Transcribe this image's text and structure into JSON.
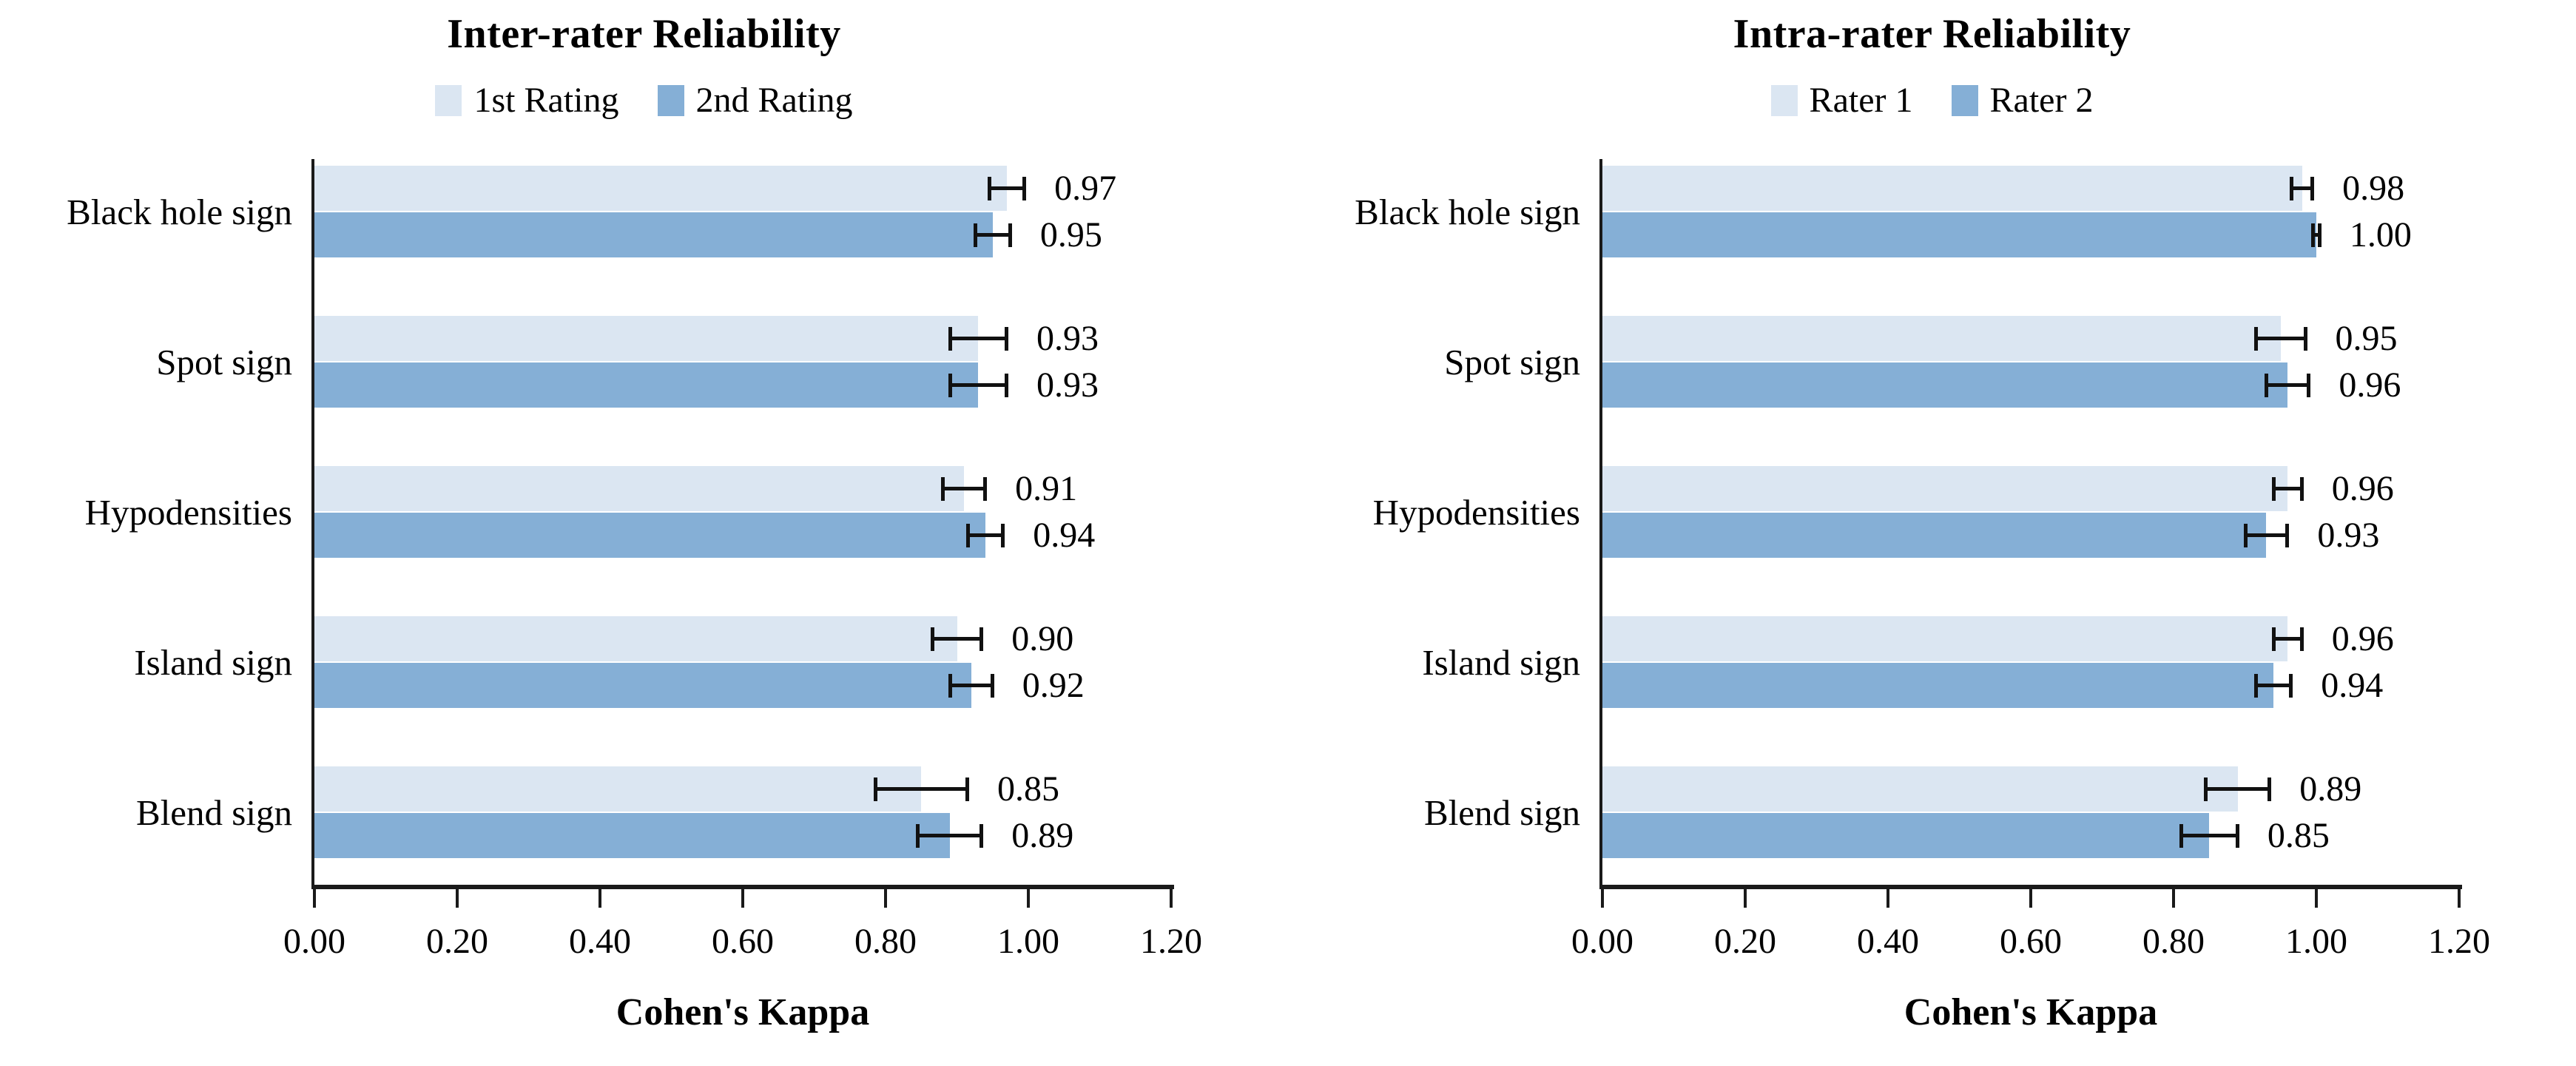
{
  "figure": {
    "background": "#ffffff",
    "text_color": "#000000",
    "axis_color": "#1a1a1a"
  },
  "chart_data": [
    {
      "type": "bar",
      "orientation": "horizontal",
      "title": "Inter-rater Reliability",
      "xlabel": "Cohen's Kappa",
      "xlim": [
        0,
        1.2
      ],
      "xtick_labels": [
        "0.00",
        "0.20",
        "0.40",
        "0.60",
        "0.80",
        "1.00",
        "1.20"
      ],
      "grid": false,
      "legend_position": "top",
      "categories": [
        "Black hole sign",
        "Spot sign",
        "Hypodensities",
        "Island sign",
        "Blend sign"
      ],
      "series": [
        {
          "name": "1st Rating",
          "color": "#dbe6f2",
          "values": [
            0.97,
            0.93,
            0.91,
            0.9,
            0.85
          ],
          "errors": [
            0.025,
            0.04,
            0.03,
            0.035,
            0.065
          ],
          "value_labels": [
            "0.97",
            "0.93",
            "0.91",
            "0.90",
            "0.85"
          ]
        },
        {
          "name": "2nd Rating",
          "color": "#85afd6",
          "values": [
            0.95,
            0.93,
            0.94,
            0.92,
            0.89
          ],
          "errors": [
            0.025,
            0.04,
            0.025,
            0.03,
            0.045
          ],
          "value_labels": [
            "0.95",
            "0.93",
            "0.94",
            "0.92",
            "0.89"
          ]
        }
      ]
    },
    {
      "type": "bar",
      "orientation": "horizontal",
      "title": "Intra-rater Reliability",
      "xlabel": "Cohen's Kappa",
      "xlim": [
        0,
        1.2
      ],
      "xtick_labels": [
        "0.00",
        "0.20",
        "0.40",
        "0.60",
        "0.80",
        "1.00",
        "1.20"
      ],
      "grid": false,
      "legend_position": "top",
      "categories": [
        "Black hole sign",
        "Spot sign",
        "Hypodensities",
        "Island sign",
        "Blend sign"
      ],
      "series": [
        {
          "name": "Rater 1",
          "color": "#dbe6f2",
          "values": [
            0.98,
            0.95,
            0.96,
            0.96,
            0.89
          ],
          "errors": [
            0.015,
            0.035,
            0.02,
            0.02,
            0.045
          ],
          "value_labels": [
            "0.98",
            "0.95",
            "0.96",
            "0.96",
            "0.89"
          ]
        },
        {
          "name": "Rater 2",
          "color": "#85afd6",
          "values": [
            1.0,
            0.96,
            0.93,
            0.94,
            0.85
          ],
          "errors": [
            0.005,
            0.03,
            0.03,
            0.025,
            0.04
          ],
          "value_labels": [
            "1.00",
            "0.96",
            "0.93",
            "0.94",
            "0.85"
          ]
        }
      ]
    }
  ]
}
